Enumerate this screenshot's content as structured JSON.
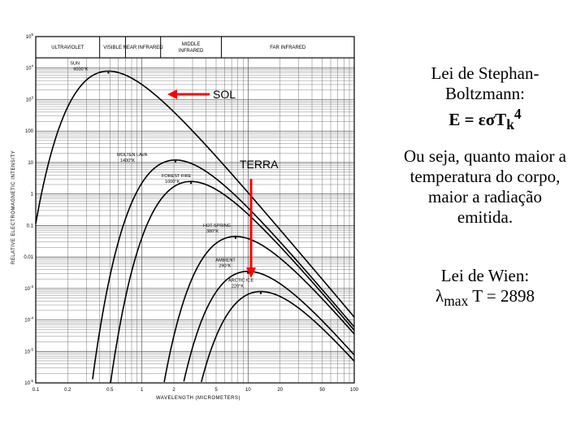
{
  "chart_data": {
    "type": "line",
    "xscale": "log",
    "yscale": "log",
    "xlim": [
      0.1,
      100
    ],
    "ylim": [
      1e-06,
      100000.0
    ],
    "xlabel": "WAVELENGTH (MICROMETERS)",
    "ylabel": "RELATIVE ELECTROMAGNETIC INTENSITY",
    "x_ticks": [
      "0.1",
      "0.2",
      "0.5",
      "1",
      "2",
      "5",
      "10",
      "20",
      "50",
      "100"
    ],
    "y_ticks": [
      {
        "base": "10",
        "exp": "5"
      },
      {
        "base": "10",
        "exp": "4"
      },
      {
        "base": "10",
        "exp": "3"
      },
      {
        "base": "100",
        "exp": ""
      },
      {
        "base": "10",
        "exp": ""
      },
      {
        "base": "1",
        "exp": ""
      },
      {
        "base": "0.1",
        "exp": ""
      },
      {
        "base": "0.01",
        "exp": ""
      },
      {
        "base": "10",
        "exp": "-3"
      },
      {
        "base": "10",
        "exp": "-4"
      },
      {
        "base": "10",
        "exp": "-5"
      },
      {
        "base": "10",
        "exp": "-6"
      }
    ],
    "bands": [
      {
        "label": [
          "ULTRAVIOLET"
        ],
        "from": 0.1,
        "to": 0.4
      },
      {
        "label": [
          "VISIBLE"
        ],
        "from": 0.4,
        "to": 0.7
      },
      {
        "label": [
          "NEAR INFRARED"
        ],
        "from": 0.7,
        "to": 1.5
      },
      {
        "label": [
          "MIDDLE",
          "INFRARED"
        ],
        "from": 1.5,
        "to": 5.6
      },
      {
        "label": [
          "FAR INFRARED"
        ],
        "from": 5.6,
        "to": 100
      }
    ],
    "series": [
      {
        "name": "SUN 6000°K",
        "T": 6000,
        "peak": 8000,
        "label": [
          "SUN",
          "6000°K"
        ]
      },
      {
        "name": "MOLTEN LAVA 1400°K",
        "T": 1400,
        "peak": 12,
        "label": [
          "MOLTEN LAVA",
          "1400°K"
        ]
      },
      {
        "name": "FOREST FIRE 1000°K",
        "T": 1000,
        "peak": 2.5,
        "label": [
          "FOREST FIRE",
          "1000°K"
        ]
      },
      {
        "name": "HOT SPRING 380°K",
        "T": 380,
        "peak": 0.045,
        "label": [
          "HOT SPRING",
          "380°K"
        ]
      },
      {
        "name": "AMBIENT 290°K",
        "T": 290,
        "peak": 0.0035,
        "label": [
          "AMBIENT",
          "290°K"
        ]
      },
      {
        "name": "ARCTIC ICE 220°K",
        "T": 220,
        "peak": 0.0008,
        "label": [
          "ARCTIC ICE",
          "220°K"
        ]
      }
    ]
  },
  "annotations": {
    "sol": "SOL",
    "terra": "TERRA",
    "arrow_color": "#ff0000"
  },
  "text": {
    "law1_line1": "Lei de Stephan-",
    "law1_line2": "Boltzmann:",
    "law1_formula": "E = εσT",
    "law1_sub": "k",
    "law1_sup": "4",
    "desc_line1": "Ou seja, quanto maior a",
    "desc_line2": "temperatura do corpo,",
    "desc_line3": "maior a radiação",
    "desc_line4": "emitida.",
    "law2_line1": "Lei de Wien:",
    "law2_lambda": "λ",
    "law2_sub": "max",
    "law2_rest": " T = 2898"
  }
}
